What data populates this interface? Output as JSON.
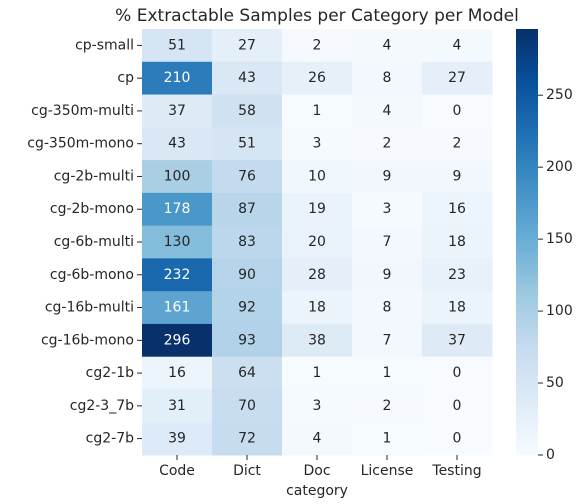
{
  "chart_data": {
    "type": "heatmap",
    "title": "% Extractable Samples per Category per Model",
    "xlabel": "category",
    "categories": [
      "Code",
      "Dict",
      "Doc",
      "License",
      "Testing"
    ],
    "rows": [
      "cp-small",
      "cp",
      "cg-350m-multi",
      "cg-350m-mono",
      "cg-2b-multi",
      "cg-2b-mono",
      "cg-6b-multi",
      "cg-6b-mono",
      "cg-16b-multi",
      "cg-16b-mono",
      "cg2-1b",
      "cg2-3_7b",
      "cg2-7b"
    ],
    "values": [
      [
        51,
        27,
        2,
        4,
        4
      ],
      [
        210,
        43,
        26,
        8,
        27
      ],
      [
        37,
        58,
        1,
        4,
        0
      ],
      [
        43,
        51,
        3,
        2,
        2
      ],
      [
        100,
        76,
        10,
        9,
        9
      ],
      [
        178,
        87,
        19,
        3,
        16
      ],
      [
        130,
        83,
        20,
        7,
        18
      ],
      [
        232,
        90,
        28,
        9,
        23
      ],
      [
        161,
        92,
        18,
        8,
        18
      ],
      [
        296,
        93,
        38,
        7,
        37
      ],
      [
        16,
        64,
        1,
        1,
        0
      ],
      [
        31,
        70,
        3,
        2,
        0
      ],
      [
        39,
        72,
        4,
        1,
        0
      ]
    ],
    "colormap": "Blues",
    "zlim": [
      0,
      296
    ],
    "zticks": [
      0,
      50,
      100,
      150,
      200,
      250
    ]
  }
}
